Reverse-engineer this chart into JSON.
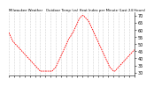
{
  "title": "Milwaukee Weather   Outdoor Temp (vs) Heat Index per Minute (Last 24 Hours)",
  "bg_color": "#ffffff",
  "line_color": "#ff0000",
  "grid_color": "#aaaaaa",
  "ylabel_right": true,
  "ylim": [
    28,
    72
  ],
  "yticks": [
    30,
    35,
    40,
    45,
    50,
    55,
    60,
    65,
    70
  ],
  "num_points": 1440,
  "x_data": [
    0,
    15,
    30,
    45,
    60,
    75,
    90,
    105,
    120,
    135,
    150,
    165,
    180,
    195,
    210,
    225,
    240,
    255,
    270,
    285,
    300,
    315,
    330,
    345,
    360,
    375,
    390,
    405,
    420,
    435,
    450,
    465,
    480,
    495,
    510,
    525,
    540,
    555,
    570,
    585,
    600,
    615,
    630,
    645,
    660,
    675,
    690,
    705,
    720,
    735,
    750,
    765,
    780,
    795,
    810,
    825,
    840,
    855,
    870,
    885,
    900,
    915,
    930,
    945,
    960,
    975,
    990,
    1005,
    1020,
    1035,
    1050,
    1065,
    1080,
    1095,
    1110,
    1125,
    1140,
    1155,
    1170,
    1185,
    1200,
    1215,
    1230,
    1245,
    1260,
    1275,
    1290,
    1305,
    1320,
    1335,
    1350,
    1365,
    1380,
    1395,
    1410,
    1425,
    1440
  ],
  "y_data": [
    58,
    56,
    54,
    52,
    51,
    50,
    49,
    48,
    47,
    46,
    45,
    44,
    43,
    42,
    41,
    40,
    39,
    38,
    37,
    36,
    35,
    34,
    33,
    32,
    31,
    31,
    31,
    31,
    31,
    31,
    31,
    31,
    31,
    31,
    32,
    33,
    34,
    36,
    38,
    40,
    42,
    44,
    46,
    48,
    50,
    52,
    54,
    55,
    57,
    58,
    60,
    62,
    64,
    66,
    68,
    69,
    70,
    70,
    69,
    68,
    67,
    66,
    64,
    62,
    60,
    58,
    56,
    54,
    52,
    50,
    48,
    46,
    44,
    42,
    40,
    38,
    36,
    34,
    33,
    32,
    31,
    31,
    32,
    33,
    34,
    35,
    36,
    37,
    38,
    39,
    40,
    41,
    42,
    43,
    44,
    45,
    46
  ]
}
